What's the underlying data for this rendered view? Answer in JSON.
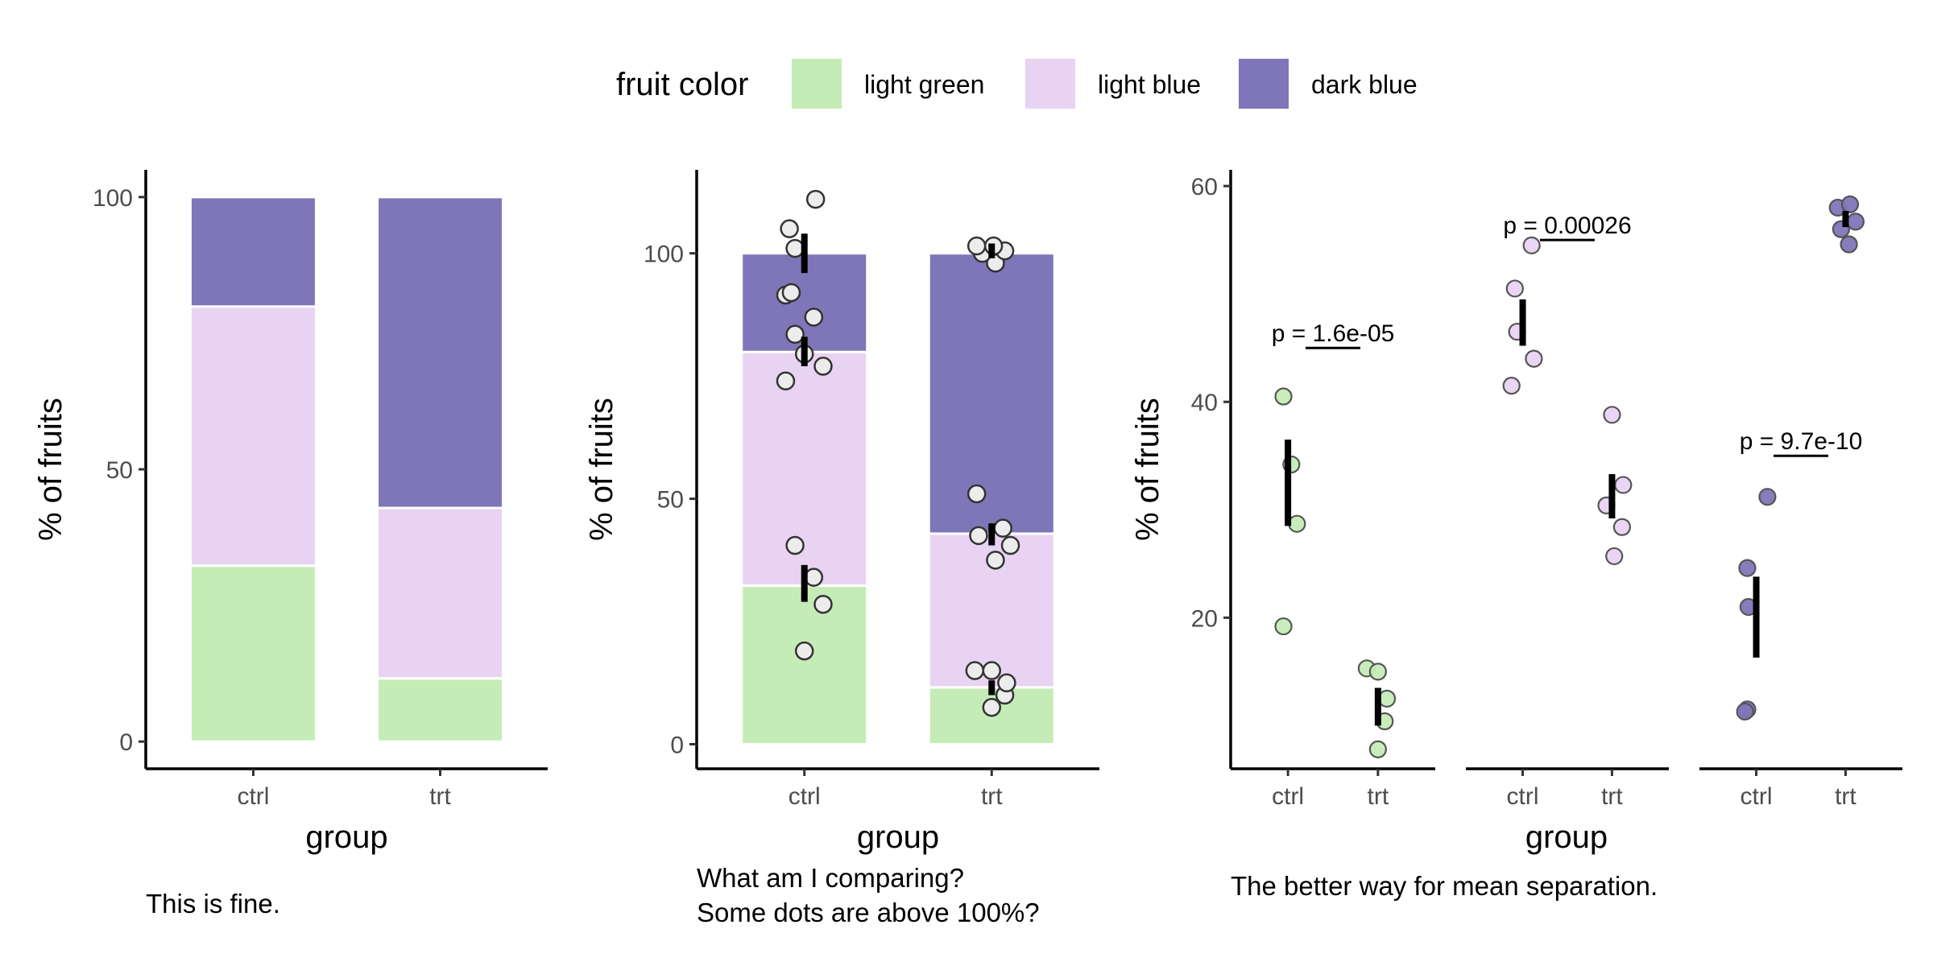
{
  "legend": {
    "title": "fruit color",
    "items": [
      {
        "label": "light green",
        "color": "#c5ecb6"
      },
      {
        "label": "light blue",
        "color": "#e8d3f3"
      },
      {
        "label": "dark blue",
        "color": "#7e76b8"
      }
    ]
  },
  "chart_data": [
    {
      "type": "bar",
      "stacked": true,
      "xlabel": "group",
      "ylabel": "% of fruits",
      "caption": [
        "This is fine."
      ],
      "categories": [
        "ctrl",
        "trt"
      ],
      "ylim": [
        -5,
        105
      ],
      "yticks": [
        0,
        50,
        100
      ],
      "series": [
        {
          "name": "light green",
          "color": "#c5ecb6",
          "values": [
            32.3,
            11.6
          ]
        },
        {
          "name": "light blue",
          "color": "#e8d3f3",
          "values": [
            47.6,
            31.3
          ]
        },
        {
          "name": "dark blue",
          "color": "#7e76b8",
          "values": [
            20.1,
            57.1
          ]
        }
      ]
    },
    {
      "type": "bar",
      "stacked": true,
      "xlabel": "group",
      "ylabel": "% of fruits",
      "caption": [
        "What am I comparing?",
        "Some dots are above 100%?"
      ],
      "categories": [
        "ctrl",
        "trt"
      ],
      "ylim": [
        -5,
        117
      ],
      "yticks": [
        0,
        50,
        100
      ],
      "series": [
        {
          "name": "light green",
          "color": "#c5ecb6",
          "values": [
            32.3,
            11.6
          ]
        },
        {
          "name": "light blue",
          "color": "#e8d3f3",
          "values": [
            47.6,
            31.3
          ]
        },
        {
          "name": "dark blue",
          "color": "#7e76b8",
          "values": [
            20.1,
            57.1
          ]
        }
      ],
      "points": [
        {
          "group": "ctrl",
          "dx": 0.0,
          "y": 19.0
        },
        {
          "group": "ctrl",
          "dx": 0.1,
          "y": 28.5
        },
        {
          "group": "ctrl",
          "dx": 0.05,
          "y": 34.0
        },
        {
          "group": "ctrl",
          "dx": -0.05,
          "y": 40.5
        },
        {
          "group": "ctrl",
          "dx": -0.1,
          "y": 74.0
        },
        {
          "group": "ctrl",
          "dx": 0.1,
          "y": 77.0
        },
        {
          "group": "ctrl",
          "dx": 0.0,
          "y": 79.5
        },
        {
          "group": "ctrl",
          "dx": -0.05,
          "y": 83.5
        },
        {
          "group": "ctrl",
          "dx": 0.05,
          "y": 87.0
        },
        {
          "group": "ctrl",
          "dx": -0.1,
          "y": 91.5
        },
        {
          "group": "ctrl",
          "dx": -0.07,
          "y": 92.0
        },
        {
          "group": "ctrl",
          "dx": -0.05,
          "y": 101.0
        },
        {
          "group": "ctrl",
          "dx": -0.08,
          "y": 105.0
        },
        {
          "group": "ctrl",
          "dx": 0.06,
          "y": 111.0
        },
        {
          "group": "trt",
          "dx": 0.0,
          "y": 7.5
        },
        {
          "group": "trt",
          "dx": 0.07,
          "y": 10.0
        },
        {
          "group": "trt",
          "dx": 0.08,
          "y": 12.5
        },
        {
          "group": "trt",
          "dx": -0.09,
          "y": 15.0
        },
        {
          "group": "trt",
          "dx": 0.0,
          "y": 15.0
        },
        {
          "group": "trt",
          "dx": 0.02,
          "y": 37.5
        },
        {
          "group": "trt",
          "dx": 0.1,
          "y": 40.5
        },
        {
          "group": "trt",
          "dx": -0.07,
          "y": 42.5
        },
        {
          "group": "trt",
          "dx": 0.06,
          "y": 44.0
        },
        {
          "group": "trt",
          "dx": -0.08,
          "y": 51.0
        },
        {
          "group": "trt",
          "dx": 0.02,
          "y": 98.0
        },
        {
          "group": "trt",
          "dx": -0.05,
          "y": 100.0
        },
        {
          "group": "trt",
          "dx": 0.07,
          "y": 100.5
        },
        {
          "group": "trt",
          "dx": -0.08,
          "y": 101.5
        },
        {
          "group": "trt",
          "dx": 0.01,
          "y": 101.5
        }
      ],
      "errorbars": [
        {
          "group": "ctrl",
          "ymin": 29.0,
          "ymax": 36.5
        },
        {
          "group": "ctrl",
          "ymin": 77.0,
          "ymax": 83.0
        },
        {
          "group": "ctrl",
          "ymin": 96.0,
          "ymax": 104.0
        },
        {
          "group": "trt",
          "ymin": 10.0,
          "ymax": 13.0
        },
        {
          "group": "trt",
          "ymin": 40.5,
          "ymax": 45.0
        },
        {
          "group": "trt",
          "ymin": 99.0,
          "ymax": 102.0
        }
      ]
    },
    {
      "type": "scatter",
      "faceted": true,
      "xlabel": "group",
      "ylabel": "% of fruits",
      "caption": [
        "The better way for mean separation."
      ],
      "categories": [
        "ctrl",
        "trt"
      ],
      "ylim": [
        6,
        61.5
      ],
      "yticks": [
        20,
        40,
        60
      ],
      "facets": [
        {
          "name": "light green",
          "color": "#c5ecb6",
          "pvalue": {
            "prefix": "p = ",
            "value": "1.6e-05",
            "y": 45
          },
          "points": [
            {
              "group": "ctrl",
              "dx": -0.04,
              "y": 40.5
            },
            {
              "group": "ctrl",
              "dx": 0.03,
              "y": 34.2
            },
            {
              "group": "ctrl",
              "dx": 0.08,
              "y": 28.7
            },
            {
              "group": "ctrl",
              "dx": -0.04,
              "y": 19.2
            },
            {
              "group": "trt",
              "dx": -0.1,
              "y": 15.3
            },
            {
              "group": "trt",
              "dx": 0.0,
              "y": 15.0
            },
            {
              "group": "trt",
              "dx": 0.08,
              "y": 12.5
            },
            {
              "group": "trt",
              "dx": 0.06,
              "y": 10.4
            },
            {
              "group": "trt",
              "dx": 0.0,
              "y": 7.8
            }
          ],
          "errorbars": [
            {
              "group": "ctrl",
              "ymin": 28.5,
              "ymax": 36.5
            },
            {
              "group": "trt",
              "ymin": 10.0,
              "ymax": 13.5
            }
          ]
        },
        {
          "name": "light blue",
          "color": "#e8d3f3",
          "pvalue": {
            "prefix": "p = ",
            "value": "0.00026",
            "y": 55
          },
          "points": [
            {
              "group": "ctrl",
              "dx": 0.08,
              "y": 54.5
            },
            {
              "group": "ctrl",
              "dx": -0.07,
              "y": 50.5
            },
            {
              "group": "ctrl",
              "dx": -0.05,
              "y": 46.5
            },
            {
              "group": "ctrl",
              "dx": 0.1,
              "y": 44.0
            },
            {
              "group": "ctrl",
              "dx": -0.1,
              "y": 41.5
            },
            {
              "group": "trt",
              "dx": 0.0,
              "y": 38.8
            },
            {
              "group": "trt",
              "dx": 0.1,
              "y": 32.3
            },
            {
              "group": "trt",
              "dx": -0.05,
              "y": 30.4
            },
            {
              "group": "trt",
              "dx": 0.09,
              "y": 28.4
            },
            {
              "group": "trt",
              "dx": 0.02,
              "y": 25.7
            }
          ],
          "errorbars": [
            {
              "group": "ctrl",
              "ymin": 45.2,
              "ymax": 49.5
            },
            {
              "group": "trt",
              "ymin": 29.2,
              "ymax": 33.3
            }
          ]
        },
        {
          "name": "dark blue",
          "color": "#7e76b8",
          "pvalue": {
            "prefix": "p = ",
            "value": "9.7e-10",
            "y": 35
          },
          "points": [
            {
              "group": "ctrl",
              "dx": 0.1,
              "y": 31.2
            },
            {
              "group": "ctrl",
              "dx": -0.08,
              "y": 24.6
            },
            {
              "group": "ctrl",
              "dx": -0.07,
              "y": 21.0
            },
            {
              "group": "ctrl",
              "dx": -0.08,
              "y": 11.5
            },
            {
              "group": "ctrl",
              "dx": -0.1,
              "y": 11.3
            },
            {
              "group": "trt",
              "dx": -0.07,
              "y": 58.0
            },
            {
              "group": "trt",
              "dx": 0.04,
              "y": 58.3
            },
            {
              "group": "trt",
              "dx": 0.09,
              "y": 56.7
            },
            {
              "group": "trt",
              "dx": -0.04,
              "y": 56.0
            },
            {
              "group": "trt",
              "dx": 0.03,
              "y": 54.6
            }
          ],
          "errorbars": [
            {
              "group": "ctrl",
              "ymin": 16.3,
              "ymax": 23.8
            },
            {
              "group": "trt",
              "ymin": 56.2,
              "ymax": 57.7
            }
          ]
        }
      ]
    }
  ]
}
